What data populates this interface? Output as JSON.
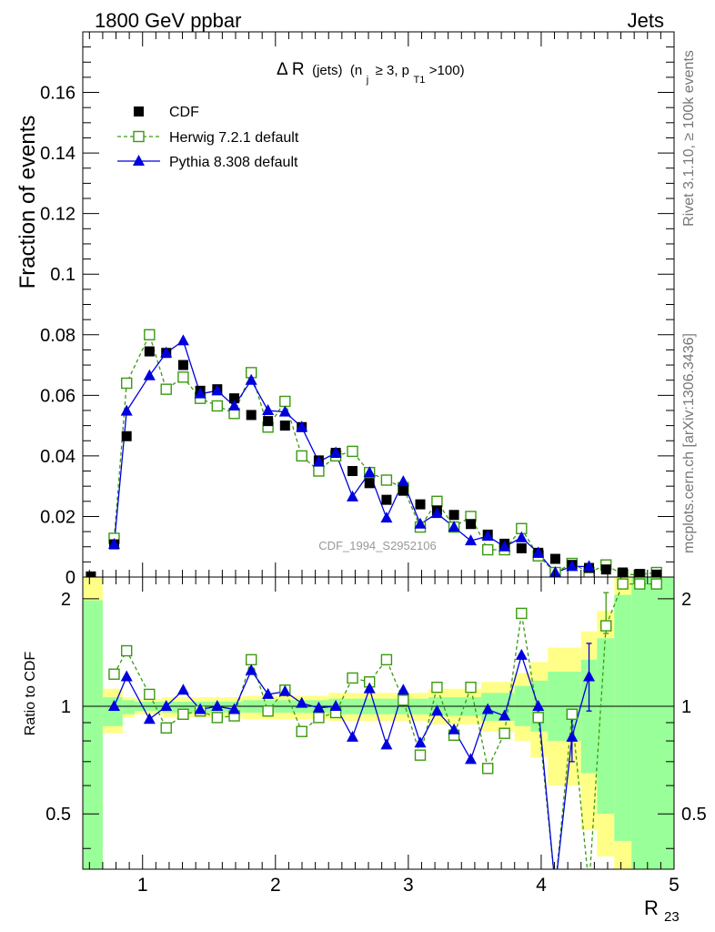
{
  "header": {
    "left": "1800 GeV ppbar",
    "right": "Jets"
  },
  "side_labels": {
    "rivet": "Rivet 3.1.10, ≥ 100k events",
    "mcplots": "mcplots.cern.ch [arXiv:1306.3436]"
  },
  "watermark": "CDF_1994_S2952106",
  "chart_data": {
    "type": "scatter",
    "title": {
      "main": "Δ R",
      "jets": "(jets)",
      "cond_open": "(n",
      "cond_nsub": "j",
      "cond_mid": "≥ 3, p",
      "cond_psub": "T1",
      "cond_end": ">100)"
    },
    "xlabel": "R",
    "xlabel_sub": "23",
    "ylabel": "Fraction of events",
    "ratio_ylabel": "Ratio to CDF",
    "xlim": [
      0.55,
      5.0
    ],
    "ylim": [
      0,
      0.18
    ],
    "ratio_ylim": [
      0.35,
      2.3
    ],
    "x_ticks": [
      "1",
      "2",
      "3",
      "4",
      "5"
    ],
    "y_ticks": [
      "0",
      "0.02",
      "0.04",
      "0.06",
      "0.08",
      "0.1",
      "0.12",
      "0.14",
      "0.16"
    ],
    "ratio_ticks": [
      "0.5",
      "1",
      "2"
    ],
    "legend": [
      "CDF",
      "Herwig 7.2.1 default",
      "Pythia 8.308 default"
    ],
    "legend_position": "top-left",
    "colors": {
      "data": "#000000",
      "herwig": "#3a9a10",
      "pythia": "#0000dd",
      "band_inner": "#99ff99",
      "band_outer": "#ffff88"
    },
    "x": [
      0.611,
      0.786,
      0.88,
      1.052,
      1.178,
      1.306,
      1.434,
      1.562,
      1.69,
      1.818,
      1.944,
      2.072,
      2.198,
      2.326,
      2.454,
      2.58,
      2.708,
      2.836,
      2.962,
      3.09,
      3.216,
      3.344,
      3.47,
      3.598,
      3.724,
      3.852,
      3.978,
      4.106,
      4.232,
      4.36,
      4.488,
      4.614,
      4.742,
      4.868
    ],
    "series": [
      {
        "name": "CDF",
        "values": [
          0.0002,
          0.0108,
          0.0465,
          0.0745,
          0.074,
          0.07,
          0.0615,
          0.062,
          0.059,
          0.0535,
          0.0515,
          0.05,
          0.0495,
          0.0385,
          0.041,
          0.035,
          0.031,
          0.0255,
          0.0285,
          0.024,
          0.022,
          0.0205,
          0.0175,
          0.014,
          0.011,
          0.0095,
          0.008,
          0.006,
          0.004,
          0.003,
          0.0025,
          0.0015,
          0.001,
          0.0008
        ]
      },
      {
        "name": "Herwig 7.2.1 default",
        "values": [
          null,
          0.0128,
          0.064,
          0.08,
          0.062,
          0.066,
          0.059,
          0.0565,
          0.054,
          0.0675,
          0.0495,
          0.058,
          0.04,
          0.035,
          0.04,
          0.0415,
          0.0345,
          0.032,
          0.0295,
          0.0165,
          0.025,
          0.0165,
          0.02,
          0.009,
          0.009,
          0.016,
          0.007,
          0.0015,
          0.0045,
          0.0015,
          0.004,
          0.0008,
          0.0008,
          0.0015
        ]
      },
      {
        "name": "Pythia 8.308 default",
        "values": [
          null,
          0.0108,
          0.0548,
          0.0665,
          0.074,
          0.078,
          0.0605,
          0.0615,
          0.0565,
          0.065,
          0.055,
          0.0545,
          0.0495,
          0.038,
          0.041,
          0.0265,
          0.0345,
          0.0195,
          0.0315,
          0.0175,
          0.021,
          0.0165,
          0.012,
          0.0135,
          0.01,
          0.013,
          0.008,
          0.0015,
          0.0035,
          0.0035,
          null,
          null,
          null,
          null
        ]
      }
    ],
    "ratio_series": [
      {
        "name": "Herwig 7.2.1 default",
        "values": [
          null,
          1.23,
          1.43,
          1.08,
          0.87,
          0.95,
          0.97,
          0.93,
          0.94,
          1.35,
          0.97,
          1.11,
          0.85,
          0.93,
          0.96,
          1.2,
          1.17,
          1.35,
          1.04,
          0.73,
          1.13,
          0.83,
          1.13,
          0.67,
          0.84,
          1.82,
          0.93,
          0.22,
          0.95,
          0.28,
          1.68,
          2.2,
          2.2,
          2.2
        ]
      },
      {
        "name": "Pythia 8.308 default",
        "values": [
          null,
          1.0,
          1.21,
          0.92,
          1.0,
          1.11,
          0.98,
          1.0,
          0.98,
          1.26,
          1.08,
          1.1,
          1.02,
          0.99,
          1.0,
          0.82,
          1.12,
          0.78,
          1.11,
          0.79,
          0.97,
          0.86,
          0.71,
          0.98,
          0.94,
          1.39,
          1.0,
          0.2,
          0.82,
          1.21,
          null,
          null,
          null,
          null
        ]
      }
    ],
    "ratio_error_bars": [
      {
        "x": 4.232,
        "low": 0.7,
        "high": 0.95
      },
      {
        "x": 4.36,
        "low": 0.97,
        "high": 1.5
      },
      {
        "x": 4.488,
        "low": 1.6,
        "high": 2.08
      }
    ],
    "bands": [
      {
        "x0": 0.55,
        "x1": 0.7,
        "inner": [
          0.35,
          1.98
        ],
        "outer": [
          0.35,
          2.3
        ]
      },
      {
        "x0": 0.7,
        "x1": 0.85,
        "inner": [
          0.88,
          1.06
        ],
        "outer": [
          0.84,
          1.12
        ]
      },
      {
        "x0": 0.85,
        "x1": 0.94,
        "inner": [
          0.95,
          1.04
        ],
        "outer": [
          0.93,
          1.06
        ]
      },
      {
        "x0": 0.94,
        "x1": 1.15,
        "inner": [
          0.97,
          1.03
        ],
        "outer": [
          0.95,
          1.05
        ]
      },
      {
        "x0": 1.15,
        "x1": 1.75,
        "inner": [
          0.96,
          1.03
        ],
        "outer": [
          0.93,
          1.06
        ]
      },
      {
        "x0": 1.75,
        "x1": 2.4,
        "inner": [
          0.96,
          1.04
        ],
        "outer": [
          0.92,
          1.07
        ]
      },
      {
        "x0": 2.4,
        "x1": 3.15,
        "inner": [
          0.95,
          1.05
        ],
        "outer": [
          0.91,
          1.09
        ]
      },
      {
        "x0": 3.15,
        "x1": 3.55,
        "inner": [
          0.94,
          1.06
        ],
        "outer": [
          0.89,
          1.12
        ]
      },
      {
        "x0": 3.55,
        "x1": 3.8,
        "inner": [
          0.91,
          1.09
        ],
        "outer": [
          0.85,
          1.17
        ]
      },
      {
        "x0": 3.8,
        "x1": 3.92,
        "inner": [
          0.88,
          1.14
        ],
        "outer": [
          0.8,
          1.24
        ]
      },
      {
        "x0": 3.92,
        "x1": 4.05,
        "inner": [
          0.85,
          1.18
        ],
        "outer": [
          0.72,
          1.33
        ]
      },
      {
        "x0": 4.05,
        "x1": 4.3,
        "inner": [
          0.8,
          1.25
        ],
        "outer": [
          0.6,
          1.46
        ]
      },
      {
        "x0": 4.3,
        "x1": 4.42,
        "inner": [
          0.65,
          1.35
        ],
        "outer": [
          0.45,
          1.62
        ]
      },
      {
        "x0": 4.42,
        "x1": 4.55,
        "inner": [
          0.5,
          1.55
        ],
        "outer": [
          0.38,
          1.85
        ]
      },
      {
        "x0": 4.55,
        "x1": 4.68,
        "inner": [
          0.42,
          2.05
        ],
        "outer": [
          0.35,
          2.3
        ]
      },
      {
        "x0": 4.68,
        "x1": 5.0,
        "inner": [
          0.35,
          2.3
        ],
        "outer": [
          0.35,
          2.3
        ]
      }
    ]
  }
}
